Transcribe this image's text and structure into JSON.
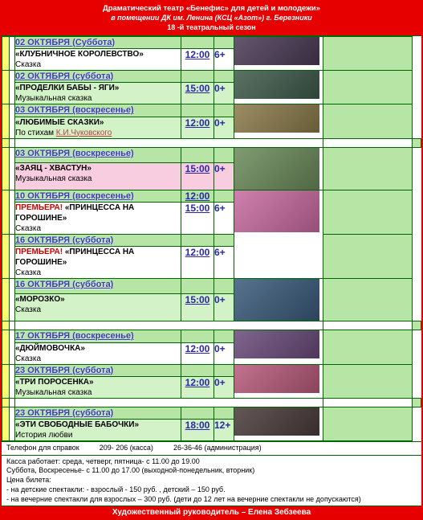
{
  "header": {
    "line1": "Драматический театр «Бенефис» для детей и молодежи»",
    "line2": "в помещении ДК им. Ленина (КСЦ «Азот») г. Березники",
    "line3": "18 -й театральный сезон"
  },
  "events": [
    {
      "date": "02 ОКТЯБРЯ (Суббота)",
      "title": "«КЛУБНИЧНОЕ КОРОЛЕВСТВО»",
      "genre": "Сказка",
      "time": "12:00",
      "age": "6+",
      "premiere": false,
      "date_bg": "bg-green-light",
      "body_bg": "",
      "img_bg": "#4a3a55"
    },
    {
      "date": "02 ОКТЯБРЯ (суббота)",
      "title": "«ПРОДЕЛКИ БАБЫ - ЯГИ»",
      "genre": "Музыкальная сказка",
      "time": "15:00",
      "age": "0+",
      "premiere": false,
      "date_bg": "bg-green-light",
      "body_bg": "bg-green-lighter",
      "img_bg": "#3e5a4a"
    },
    {
      "date": "03 ОКТЯБРЯ (воскресенье)",
      "title": "«ЛЮБИМЫЕ СКАЗКИ»",
      "genre_prefix": "По стихам ",
      "author": "К.И.Чуковского",
      "time": "12:00",
      "age": "0+",
      "premiere": false,
      "date_bg": "bg-green-light",
      "body_bg": "bg-green-lighter",
      "img_bg": "#8a7a4a"
    },
    {
      "date": "03 ОКТЯБРЯ (воскресенье)",
      "title": "«ЗАЯЦ - ХВАСТУН»",
      "genre": " Музыкальная сказка",
      "time": "15:00",
      "age": "0+",
      "premiere": false,
      "date_bg": "bg-green-light",
      "body_bg": "bg-pink",
      "img_bg": "#6a8a5a",
      "tall_img": true,
      "spacer_above": true
    },
    {
      "date": "10 ОКТЯБРЯ (воскресенье)",
      "premiere_label": "ПРЕМЬЕРА!",
      "title": " «ПРИНЦЕССА НА ГОРОШИНЕ»",
      "genre": "Сказка",
      "time_top": "12:00",
      "time": "15:00",
      "age": "6+",
      "premiere": true,
      "date_bg": "bg-green-light",
      "body_bg": "",
      "img_bg": "#c86aa0",
      "tall_img": true,
      "img_span": 2
    },
    {
      "date": "16 ОКТЯБРЯ (суббота)",
      "premiere_label": "ПРЕМЬЕРА!",
      "title": " «ПРИНЦЕССА НА ГОРОШИНЕ»",
      "genre": " Сказка",
      "time": "12:00",
      "age": "6+",
      "premiere": true,
      "date_bg": "bg-green-light",
      "body_bg": "",
      "no_img": true
    },
    {
      "date": "16 ОКТЯБРЯ (суббота)",
      "title": "«МОРОЗКО»",
      "genre": " Сказка",
      "time": "15:00",
      "age": "0+",
      "premiere": false,
      "date_bg": "bg-green-light",
      "body_bg": "bg-green-lighter",
      "img_bg": "#3a5a7a",
      "tall_img": true
    },
    {
      "date": "17 ОКТЯБРЯ (воскресенье)",
      "title": "«ДЮЙМОВОЧКА»",
      "genre": " Сказка",
      "time": "12:00",
      "age": "0+",
      "premiere": false,
      "date_bg": "bg-green-light",
      "body_bg": "",
      "img_bg": "#6a4a7a",
      "spacer_above": true
    },
    {
      "date": "23 ОКТЯБРЯ (суббота)",
      "title": "«ТРИ ПОРОСЕНКА»",
      "genre": " Музыкальная сказка",
      "time": "12:00",
      "age": "0+",
      "premiere": false,
      "date_bg": "bg-green-light",
      "body_bg": "bg-green-lighter",
      "img_bg": "#b85a7a"
    },
    {
      "date": "23 ОКТЯБРЯ (суббота)",
      "title": "«ЭТИ СВОБОДНЫЕ БАБОЧКИ»",
      "genre": " История любви",
      "time": "18:00",
      "age": "12+",
      "premiere": false,
      "date_bg": "bg-green-light",
      "body_bg": "bg-green-lighter",
      "img_bg": "#4a3a3a",
      "spacer_above": true
    }
  ],
  "footer": {
    "phone_label": "Телефон для справок",
    "phone1": "209- 206 (касса)",
    "phone2": "26-36-46 (администрация)",
    "hours1": "Касса работает: среда, четверг, пятница- с 11.00 до 19.00",
    "hours2": "Суббота, Воскресенье- с 11.00 до 17.00 (выходной-понедельник, вторник)",
    "price_label": "Цена билета:",
    "price1": "- на детские спектакли: - взрослый  - 150 руб. , детский – 150 руб.",
    "price2": "- на вечерние спектакли для взрослых – 300 руб. (дети до 12 лет на вечерние спектакли не допускаются)",
    "director": "Художественный руководитель – Елена Зебзеева"
  },
  "colors": {
    "red": "#e60000",
    "green_border": "#006600",
    "yellow": "#fffa70",
    "green_light": "#b6e5a6",
    "green_lighter": "#d4f2c8",
    "pink": "#f9cde0",
    "date_color": "#3838b8",
    "time_color": "#2828a8",
    "premiere_color": "#cc0000"
  }
}
